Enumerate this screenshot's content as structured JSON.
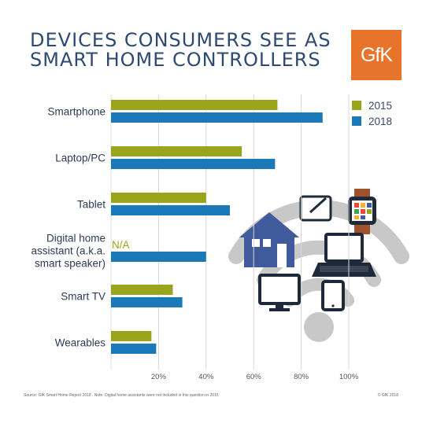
{
  "title_lines": [
    "DEVICES CONSUMERS SEE AS",
    "SMART HOME CONTROLLERS"
  ],
  "logo_text": "GfK",
  "footer": {
    "source": "Source: GfK Smart Home Report 2018 .  Note: Digital home assistants were not included in this question in 2015",
    "copyright": "© GfK 2018"
  },
  "chart_data": {
    "type": "bar",
    "orientation": "horizontal",
    "categories": [
      "Smartphone",
      "Laptop/PC",
      "Tablet",
      "Digital home assistant (a.k.a. smart speaker)",
      "Smart TV",
      "Wearables"
    ],
    "category_lines": [
      [
        "Smartphone"
      ],
      [
        "Laptop/PC"
      ],
      [
        "Tablet"
      ],
      [
        "Digital home",
        "assistant (a.k.a.",
        "smart speaker)"
      ],
      [
        "Smart TV"
      ],
      [
        "Wearables"
      ]
    ],
    "series": [
      {
        "name": "2015",
        "color": "#9aa51c",
        "values": [
          70,
          55,
          40,
          null,
          26,
          17
        ]
      },
      {
        "name": "2018",
        "color": "#1c79b7",
        "values": [
          89,
          69,
          50,
          40,
          30,
          19
        ]
      }
    ],
    "missing_label": "N/A",
    "xlim": [
      0,
      100
    ],
    "xticks": [
      20,
      40,
      60,
      80,
      100
    ],
    "xtick_labels": [
      "20%",
      "40%",
      "60%",
      "80%",
      "100%"
    ],
    "grid": true,
    "legend": "top-right"
  },
  "illustration": {
    "icons": [
      "wifi-icon",
      "house-icon",
      "tablet-icon",
      "smartwatch-icon",
      "laptop-icon",
      "monitor-icon",
      "smartphone-icon"
    ],
    "colors": {
      "wifi": "#c8c8c8",
      "house": "#3f5b9c",
      "outline": "#1e2a3a",
      "screen": "#ffffff",
      "watch_band": "#a0522d"
    }
  }
}
